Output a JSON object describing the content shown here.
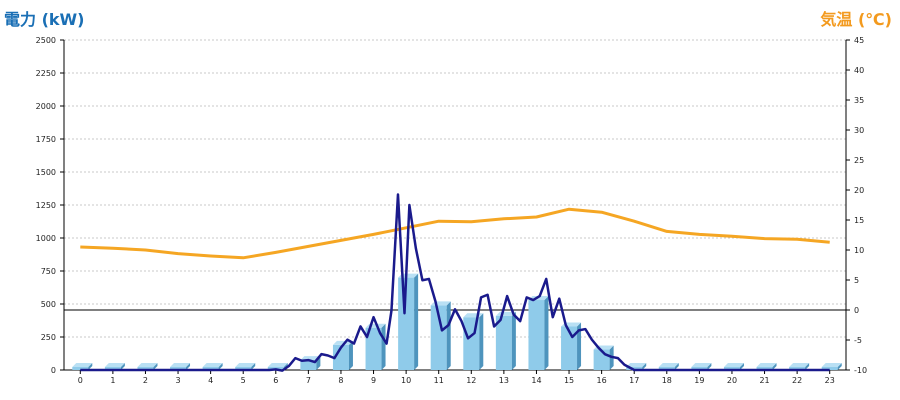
{
  "chart_data": {
    "type": "bar",
    "left_axis_title": "電力 (kW)",
    "right_axis_title": "気温 (℃)",
    "ylim_left": [
      0,
      2500
    ],
    "yticks_left": [
      0,
      250,
      500,
      750,
      1000,
      1250,
      1500,
      1750,
      2000,
      2250,
      2500
    ],
    "ylim_right": [
      -10,
      45
    ],
    "yticks_right": [
      -10,
      -5,
      0,
      5,
      10,
      15,
      20,
      25,
      30,
      35,
      40,
      45
    ],
    "categories": [
      "0",
      "1",
      "2",
      "3",
      "4",
      "5",
      "6",
      "7",
      "8",
      "9",
      "10",
      "11",
      "12",
      "13",
      "14",
      "15",
      "16",
      "17",
      "18",
      "19",
      "20",
      "21",
      "22",
      "23"
    ],
    "grid": true,
    "colors": {
      "bar": "#8fcbea",
      "bar_side": "#4e94bd",
      "power_line": "#1a1a8c",
      "temp_line": "#f5a623",
      "left_title": "#1a6fb5",
      "right_title": "#f39a1e",
      "zero_line": "#000000",
      "grid": "#c8c8c8"
    },
    "bar_values": [
      0,
      0,
      0,
      0,
      0,
      0,
      0,
      75,
      190,
      320,
      700,
      490,
      400,
      410,
      530,
      330,
      155,
      0,
      0,
      0,
      0,
      0,
      0,
      0
    ],
    "power_series": {
      "x": [
        0,
        0.5,
        1,
        1.5,
        2,
        2.5,
        3,
        3.5,
        4,
        4.5,
        5,
        5.5,
        5.8,
        6,
        6.2,
        6.4,
        6.6,
        6.8,
        7,
        7.2,
        7.4,
        7.6,
        7.8,
        8,
        8.2,
        8.4,
        8.6,
        8.8,
        9,
        9.2,
        9.4,
        9.55,
        9.75,
        9.95,
        10.1,
        10.3,
        10.5,
        10.7,
        10.9,
        11.1,
        11.3,
        11.5,
        11.7,
        11.9,
        12.1,
        12.3,
        12.5,
        12.7,
        12.9,
        13.1,
        13.3,
        13.5,
        13.7,
        13.9,
        14.1,
        14.3,
        14.5,
        14.7,
        14.9,
        15.1,
        15.3,
        15.5,
        15.7,
        15.9,
        16.1,
        16.3,
        16.5,
        16.7,
        17,
        18,
        19,
        20,
        21,
        22,
        23
      ],
      "values": [
        0,
        0,
        0,
        0,
        0,
        0,
        0,
        0,
        0,
        0,
        0,
        0,
        0,
        5,
        -5,
        30,
        90,
        70,
        75,
        60,
        120,
        110,
        90,
        170,
        230,
        200,
        330,
        250,
        400,
        280,
        200,
        450,
        1330,
        430,
        1250,
        920,
        680,
        690,
        520,
        300,
        340,
        460,
        370,
        240,
        280,
        550,
        570,
        330,
        380,
        560,
        420,
        370,
        550,
        530,
        560,
        690,
        400,
        540,
        340,
        250,
        300,
        310,
        230,
        170,
        120,
        100,
        90,
        40,
        0,
        0,
        0,
        0,
        0,
        0,
        0
      ]
    },
    "temp_series": {
      "x": [
        0,
        1,
        2,
        3,
        4,
        5,
        6,
        7,
        8,
        9,
        10,
        11,
        12,
        13,
        14,
        15,
        16,
        17,
        18,
        19,
        20,
        21,
        22,
        23
      ],
      "values": [
        10.5,
        10.3,
        10.0,
        9.4,
        9.0,
        8.7,
        9.6,
        10.6,
        11.6,
        12.6,
        13.7,
        14.8,
        14.7,
        15.2,
        15.5,
        16.8,
        16.3,
        14.8,
        13.1,
        12.6,
        12.3,
        11.9,
        11.8,
        11.3
      ]
    }
  }
}
